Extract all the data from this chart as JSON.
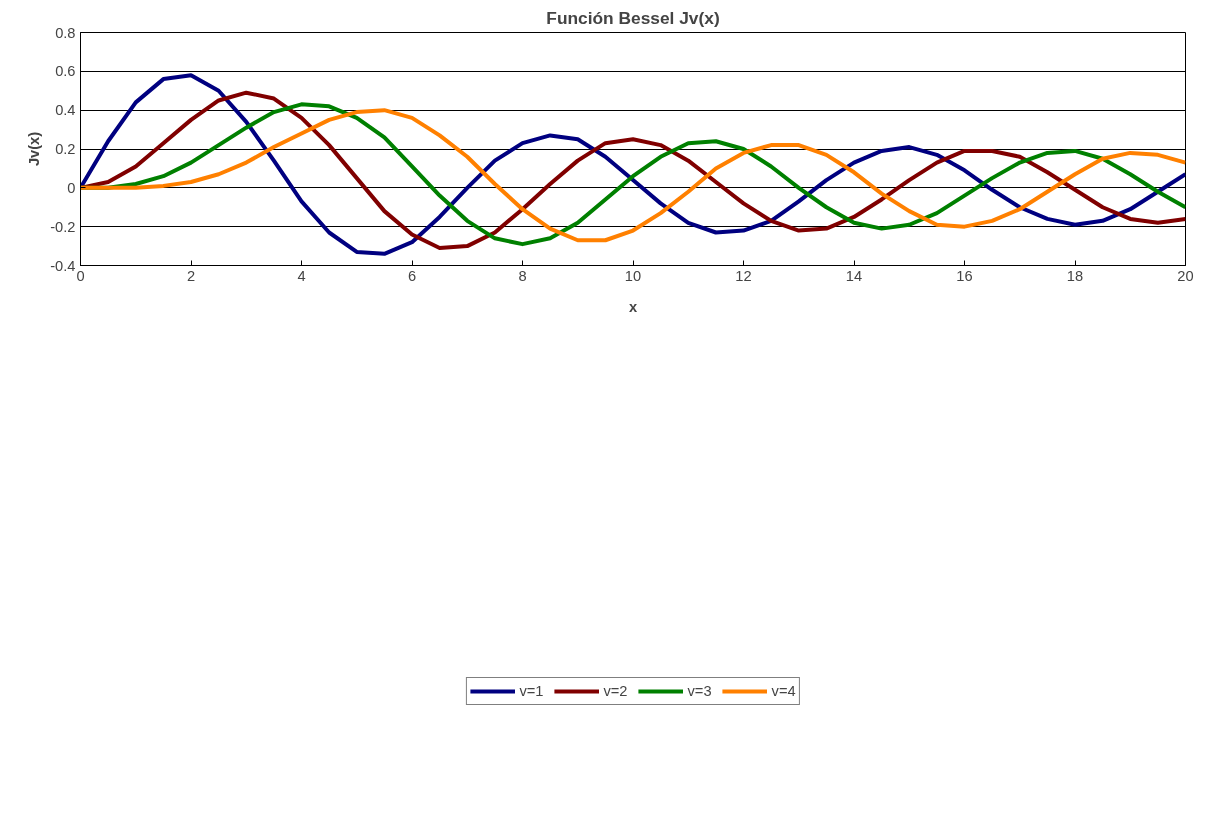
{
  "chart_data": {
    "type": "line",
    "title": "Función Bessel Jv(x)",
    "xlabel": "x",
    "ylabel": "Jv(x)",
    "x": [
      0,
      0.5,
      1,
      1.5,
      2,
      2.5,
      3,
      3.5,
      4,
      4.5,
      5,
      5.5,
      6,
      6.5,
      7,
      7.5,
      8,
      8.5,
      9,
      9.5,
      10,
      10.5,
      11,
      11.5,
      12,
      12.5,
      13,
      13.5,
      14,
      14.5,
      15,
      15.5,
      16,
      16.5,
      17,
      17.5,
      18,
      18.5,
      19,
      19.5,
      20
    ],
    "series": [
      {
        "name": "v=1",
        "color": "#000080",
        "values": [
          0,
          0.24,
          0.44,
          0.56,
          0.58,
          0.5,
          0.34,
          0.14,
          -0.07,
          -0.23,
          -0.33,
          -0.34,
          -0.28,
          -0.15,
          0.0,
          0.14,
          0.23,
          0.27,
          0.25,
          0.16,
          0.04,
          -0.08,
          -0.18,
          -0.23,
          -0.22,
          -0.17,
          -0.07,
          0.04,
          0.13,
          0.19,
          0.21,
          0.17,
          0.09,
          -0.01,
          -0.1,
          -0.16,
          -0.19,
          -0.17,
          -0.11,
          -0.02,
          0.07
        ]
      },
      {
        "name": "v=2",
        "color": "#800000",
        "values": [
          0,
          0.03,
          0.11,
          0.23,
          0.35,
          0.45,
          0.49,
          0.46,
          0.36,
          0.22,
          0.05,
          -0.12,
          -0.24,
          -0.31,
          -0.3,
          -0.23,
          -0.11,
          0.02,
          0.14,
          0.23,
          0.25,
          0.22,
          0.14,
          0.03,
          -0.08,
          -0.17,
          -0.22,
          -0.21,
          -0.15,
          -0.06,
          0.04,
          0.13,
          0.19,
          0.19,
          0.16,
          0.08,
          -0.01,
          -0.1,
          -0.16,
          -0.18,
          -0.16
        ]
      },
      {
        "name": "v=3",
        "color": "#008000",
        "values": [
          0,
          0.0,
          0.02,
          0.06,
          0.13,
          0.22,
          0.31,
          0.39,
          0.43,
          0.42,
          0.36,
          0.26,
          0.11,
          -0.04,
          -0.17,
          -0.26,
          -0.29,
          -0.26,
          -0.18,
          -0.06,
          0.06,
          0.16,
          0.23,
          0.24,
          0.2,
          0.11,
          0.0,
          -0.1,
          -0.18,
          -0.21,
          -0.19,
          -0.13,
          -0.04,
          0.05,
          0.13,
          0.18,
          0.19,
          0.15,
          0.07,
          -0.02,
          -0.1
        ]
      },
      {
        "name": "v=4",
        "color": "#ff8000",
        "values": [
          0,
          0.0,
          0.0,
          0.01,
          0.03,
          0.07,
          0.13,
          0.21,
          0.28,
          0.35,
          0.39,
          0.4,
          0.36,
          0.27,
          0.16,
          0.02,
          -0.11,
          -0.21,
          -0.27,
          -0.27,
          -0.22,
          -0.13,
          -0.02,
          0.1,
          0.18,
          0.22,
          0.22,
          0.17,
          0.08,
          -0.03,
          -0.12,
          -0.19,
          -0.2,
          -0.17,
          -0.11,
          -0.02,
          0.07,
          0.15,
          0.18,
          0.17,
          0.13
        ]
      }
    ],
    "xlim": [
      0,
      20
    ],
    "xticks": [
      0,
      2,
      4,
      6,
      8,
      10,
      12,
      14,
      16,
      18,
      20
    ],
    "ylim": [
      -0.4,
      0.8
    ],
    "yticks": [
      -0.4,
      -0.2,
      0,
      0.2,
      0.4,
      0.6,
      0.8
    ],
    "grid": "y",
    "legend": "bottom",
    "marker": "none",
    "line_style": "solid"
  }
}
